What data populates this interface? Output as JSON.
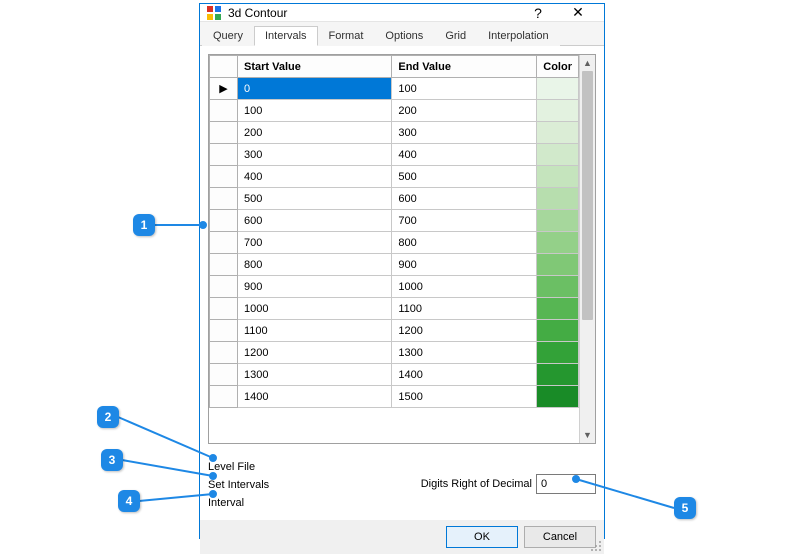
{
  "window": {
    "title": "3d Contour",
    "help": "?",
    "close": "✕"
  },
  "tabs": {
    "items": [
      "Query",
      "Intervals",
      "Format",
      "Options",
      "Grid",
      "Interpolation"
    ],
    "active_index": 1
  },
  "grid": {
    "columns": [
      "Start Value",
      "End Value",
      "Color"
    ],
    "selected_row": 0,
    "row_marker": "▶",
    "rows": [
      {
        "start": "0",
        "end": "100",
        "color": "#e9f5e8"
      },
      {
        "start": "100",
        "end": "200",
        "color": "#e3f2e0"
      },
      {
        "start": "200",
        "end": "300",
        "color": "#dbedd6"
      },
      {
        "start": "300",
        "end": "400",
        "color": "#d1e9cb"
      },
      {
        "start": "400",
        "end": "500",
        "color": "#c5e4bd"
      },
      {
        "start": "500",
        "end": "600",
        "color": "#b7deae"
      },
      {
        "start": "600",
        "end": "700",
        "color": "#a6d79c"
      },
      {
        "start": "700",
        "end": "800",
        "color": "#94d089"
      },
      {
        "start": "800",
        "end": "900",
        "color": "#80c876"
      },
      {
        "start": "900",
        "end": "1000",
        "color": "#6bbf64"
      },
      {
        "start": "1000",
        "end": "1100",
        "color": "#57b653"
      },
      {
        "start": "1100",
        "end": "1200",
        "color": "#44ac44"
      },
      {
        "start": "1200",
        "end": "1300",
        "color": "#33a238"
      },
      {
        "start": "1300",
        "end": "1400",
        "color": "#25972f"
      },
      {
        "start": "1400",
        "end": "1500",
        "color": "#198b27"
      }
    ]
  },
  "links": {
    "level_file": "Level File",
    "set_intervals": "Set Intervals",
    "interval": "Interval"
  },
  "digits": {
    "label": "Digits Right of Decimal",
    "value": "0"
  },
  "buttons": {
    "ok": "OK",
    "cancel": "Cancel"
  },
  "callouts": {
    "c1": "1",
    "c2": "2",
    "c3": "3",
    "c4": "4",
    "c5": "5"
  }
}
